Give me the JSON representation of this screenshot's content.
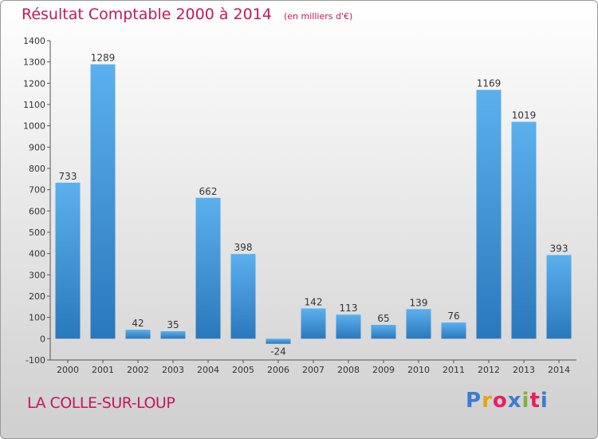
{
  "header": {
    "title": "Résultat Comptable 2000 à 2014",
    "subtitle": "(en milliers d'€)"
  },
  "footer": {
    "location": "LA COLLE-SUR-LOUP",
    "brand": {
      "letters": [
        "P",
        "r",
        "o",
        "x",
        "i",
        "t",
        "i"
      ],
      "colors": [
        "#3a7bd5",
        "#e8a317",
        "#e91e63",
        "#3a7bd5",
        "#7cb342",
        "#e91e63",
        "#3a7bd5"
      ]
    }
  },
  "chart_data": {
    "type": "bar",
    "title": "Résultat Comptable 2000 à 2014",
    "subtitle": "(en milliers d'€)",
    "xlabel": "",
    "ylabel": "",
    "categories": [
      "2000",
      "2001",
      "2002",
      "2003",
      "2004",
      "2005",
      "2006",
      "2007",
      "2008",
      "2009",
      "2010",
      "2011",
      "2012",
      "2013",
      "2014"
    ],
    "values": [
      733,
      1289,
      42,
      35,
      662,
      398,
      -24,
      142,
      113,
      65,
      139,
      76,
      1169,
      1019,
      393
    ],
    "data_labels": [
      "733",
      "1289",
      "42",
      "35",
      "662",
      "398",
      "-24",
      "142",
      "113",
      "65",
      "139",
      "76",
      "1169",
      "1019",
      "393"
    ],
    "ylim": [
      -100,
      1400
    ],
    "yticks": [
      -100,
      0,
      100,
      200,
      300,
      400,
      500,
      600,
      700,
      800,
      900,
      1000,
      1100,
      1200,
      1300,
      1400
    ],
    "ytick_labels": [
      "-100",
      "0",
      "100",
      "200",
      "300",
      "400",
      "500",
      "600",
      "700",
      "800",
      "900",
      "1000",
      "1100",
      "1200",
      "1300",
      "1400"
    ],
    "grid": false,
    "legend": "none",
    "bar_color": "#3f95d9",
    "text_color": "#c2185b"
  }
}
